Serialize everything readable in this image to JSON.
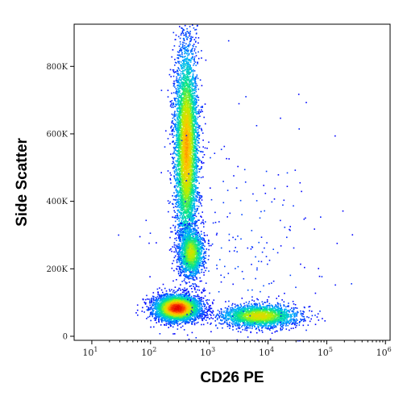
{
  "chart_data": {
    "type": "scatter",
    "title": "",
    "xlabel": "CD26 PE",
    "ylabel": "Side Scatter",
    "x_scale": "log",
    "xlim": [
      5,
      1200000
    ],
    "ylim": [
      -12000,
      925000
    ],
    "x_ticks": [
      {
        "value": 10,
        "base": "10",
        "exp": "1"
      },
      {
        "value": 100,
        "base": "10",
        "exp": "2"
      },
      {
        "value": 1000,
        "base": "10",
        "exp": "3"
      },
      {
        "value": 10000,
        "base": "10",
        "exp": "4"
      },
      {
        "value": 100000,
        "base": "10",
        "exp": "5"
      },
      {
        "value": 1000000,
        "base": "10",
        "exp": "6"
      }
    ],
    "y_ticks": [
      {
        "value": 0,
        "label": "0"
      },
      {
        "value": 200000,
        "label": "200K"
      },
      {
        "value": 400000,
        "label": "400K"
      },
      {
        "value": 600000,
        "label": "600K"
      },
      {
        "value": 800000,
        "label": "800K"
      }
    ],
    "density_colormap": [
      "#0000ff",
      "#00b4ff",
      "#00e68c",
      "#b4f000",
      "#ffc800",
      "#ff5000",
      "#e10000"
    ],
    "populations": [
      {
        "name_hint": "",
        "x_center": 280,
        "y_center": 85000,
        "x_spread_decades": 0.19,
        "y_spread": 19000,
        "points": 4200,
        "peak_density": 1.0
      },
      {
        "name_hint": "",
        "x_center": 400,
        "y_center": 560000,
        "x_spread_decades": 0.1,
        "y_spread": 150000,
        "points": 5200,
        "peak_density": 0.72
      },
      {
        "name_hint": "",
        "x_center": 480,
        "y_center": 250000,
        "x_spread_decades": 0.11,
        "y_spread": 38000,
        "points": 1500,
        "peak_density": 0.55
      },
      {
        "name_hint": "",
        "x_center": 7000,
        "y_center": 62000,
        "x_spread_decades": 0.33,
        "y_spread": 17000,
        "points": 2200,
        "peak_density": 0.6
      },
      {
        "name_hint": "",
        "x_center": 3000,
        "y_center": 250000,
        "x_spread_decades": 0.85,
        "y_spread": 200000,
        "points": 260,
        "peak_density": 0.05
      }
    ]
  }
}
